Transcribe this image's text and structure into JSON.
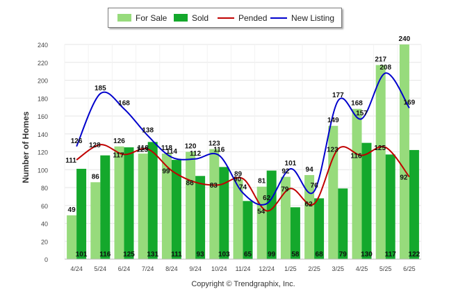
{
  "chart_data": {
    "type": "bar",
    "title": "",
    "xlabel": "",
    "ylabel": "Number of Homes",
    "ylim": [
      0,
      240
    ],
    "yticks": [
      0,
      20,
      40,
      60,
      80,
      100,
      120,
      140,
      160,
      180,
      200,
      220,
      240
    ],
    "grid": true,
    "legend_position": "top",
    "categories": [
      "4/24",
      "5/24",
      "6/24",
      "7/24",
      "8/24",
      "9/24",
      "10/24",
      "11/24",
      "12/24",
      "1/25",
      "2/25",
      "3/25",
      "4/25",
      "5/25",
      "6/25"
    ],
    "series": [
      {
        "name": "For Sale",
        "type": "bar",
        "color": "#97db7c",
        "values": [
          49,
          86,
          126,
          118,
          118,
          120,
          123,
          89,
          81,
          92,
          94,
          149,
          168,
          217,
          240
        ]
      },
      {
        "name": "Sold",
        "type": "bar",
        "color": "#14a82c",
        "values": [
          101,
          116,
          125,
          131,
          111,
          93,
          103,
          65,
          99,
          58,
          68,
          79,
          130,
          117,
          122
        ]
      },
      {
        "name": "Pended",
        "type": "line",
        "color": "#c00000",
        "values": [
          111,
          128,
          117,
          123,
          99,
          86,
          83,
          90,
          54,
          79,
          62,
          123,
          116,
          125,
          92
        ]
      },
      {
        "name": "New Listing",
        "type": "line",
        "color": "#0000cc",
        "values": [
          126,
          185,
          168,
          138,
          114,
          112,
          116,
          74,
          62,
          101,
          76,
          177,
          157,
          208,
          169
        ]
      }
    ],
    "copyright": "Copyright © Trendgraphix, Inc."
  }
}
